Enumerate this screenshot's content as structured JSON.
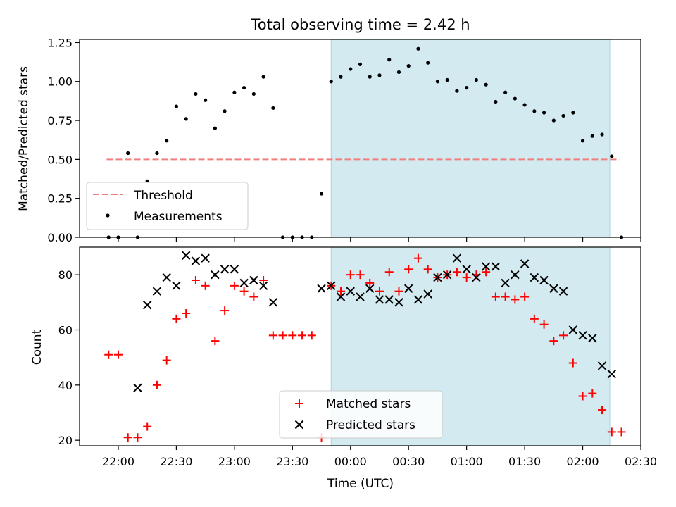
{
  "chart_data": [
    {
      "type": "scatter",
      "title": "Total observing time = 2.42 h",
      "ylabel": "Matched/Predicted stars",
      "ylim": [
        0,
        1.27
      ],
      "yticks": [
        "0.00",
        "0.25",
        "0.50",
        "0.75",
        "1.00",
        "1.25"
      ],
      "ytick_values": [
        0,
        0.25,
        0.5,
        0.75,
        1.0,
        1.25
      ],
      "xlim": [
        "21:40",
        "02:30"
      ],
      "shaded_region": [
        "23:50",
        "02:14"
      ],
      "shade_color": "#d3eaf1",
      "legend_position": "lower-left",
      "threshold": {
        "name": "Threshold",
        "value": 0.5,
        "x_range": [
          "21:54",
          "02:19"
        ],
        "color": "#f08080"
      },
      "series": [
        {
          "name": "Measurements",
          "color": "#000000",
          "points": [
            [
              "21:55",
              0.0
            ],
            [
              "22:00",
              0.0
            ],
            [
              "22:05",
              0.54
            ],
            [
              "22:10",
              0.0
            ],
            [
              "22:15",
              0.36
            ],
            [
              "22:20",
              0.54
            ],
            [
              "22:25",
              0.62
            ],
            [
              "22:30",
              0.84
            ],
            [
              "22:35",
              0.76
            ],
            [
              "22:40",
              0.92
            ],
            [
              "22:45",
              0.88
            ],
            [
              "22:50",
              0.7
            ],
            [
              "22:55",
              0.81
            ],
            [
              "23:00",
              0.93
            ],
            [
              "23:05",
              0.96
            ],
            [
              "23:10",
              0.92
            ],
            [
              "23:15",
              1.03
            ],
            [
              "23:20",
              0.83
            ],
            [
              "23:25",
              0.0
            ],
            [
              "23:30",
              0.0
            ],
            [
              "23:35",
              0.0
            ],
            [
              "23:40",
              0.0
            ],
            [
              "23:45",
              0.28
            ],
            [
              "23:50",
              1.0
            ],
            [
              "23:55",
              1.03
            ],
            [
              "00:00",
              1.08
            ],
            [
              "00:05",
              1.11
            ],
            [
              "00:10",
              1.03
            ],
            [
              "00:15",
              1.04
            ],
            [
              "00:20",
              1.14
            ],
            [
              "00:25",
              1.06
            ],
            [
              "00:30",
              1.1
            ],
            [
              "00:35",
              1.21
            ],
            [
              "00:40",
              1.12
            ],
            [
              "00:45",
              1.0
            ],
            [
              "00:50",
              1.01
            ],
            [
              "00:55",
              0.94
            ],
            [
              "01:00",
              0.96
            ],
            [
              "01:05",
              1.01
            ],
            [
              "01:10",
              0.98
            ],
            [
              "01:15",
              0.87
            ],
            [
              "01:20",
              0.93
            ],
            [
              "01:25",
              0.89
            ],
            [
              "01:30",
              0.85
            ],
            [
              "01:35",
              0.81
            ],
            [
              "01:40",
              0.8
            ],
            [
              "01:45",
              0.75
            ],
            [
              "01:50",
              0.78
            ],
            [
              "01:55",
              0.8
            ],
            [
              "02:00",
              0.62
            ],
            [
              "02:05",
              0.65
            ],
            [
              "02:10",
              0.66
            ],
            [
              "02:15",
              0.52
            ],
            [
              "02:20",
              0.0
            ]
          ]
        }
      ]
    },
    {
      "type": "scatter",
      "xlabel": "Time (UTC)",
      "ylabel": "Count",
      "ylim": [
        18,
        90
      ],
      "yticks": [
        "20",
        "40",
        "60",
        "80"
      ],
      "ytick_values": [
        20,
        40,
        60,
        80
      ],
      "xlim": [
        "21:40",
        "02:30"
      ],
      "xticks": [
        "22:00",
        "22:30",
        "23:00",
        "23:30",
        "00:00",
        "00:30",
        "01:00",
        "01:30",
        "02:00",
        "02:30"
      ],
      "shaded_region": [
        "23:50",
        "02:14"
      ],
      "shade_color": "#d3eaf1",
      "legend_position": "lower-center",
      "series": [
        {
          "name": "Matched stars",
          "color": "#ff0000",
          "marker": "plus",
          "points": [
            [
              "21:55",
              51
            ],
            [
              "22:00",
              51
            ],
            [
              "22:05",
              21
            ],
            [
              "22:10",
              21
            ],
            [
              "22:15",
              25
            ],
            [
              "22:20",
              40
            ],
            [
              "22:25",
              49
            ],
            [
              "22:30",
              64
            ],
            [
              "22:35",
              66
            ],
            [
              "22:40",
              78
            ],
            [
              "22:45",
              76
            ],
            [
              "22:50",
              56
            ],
            [
              "22:55",
              67
            ],
            [
              "23:00",
              76
            ],
            [
              "23:05",
              74
            ],
            [
              "23:10",
              72
            ],
            [
              "23:15",
              78
            ],
            [
              "23:20",
              58
            ],
            [
              "23:25",
              58
            ],
            [
              "23:30",
              58
            ],
            [
              "23:35",
              58
            ],
            [
              "23:40",
              58
            ],
            [
              "23:45",
              21
            ],
            [
              "23:50",
              76
            ],
            [
              "23:55",
              74
            ],
            [
              "00:00",
              80
            ],
            [
              "00:05",
              80
            ],
            [
              "00:10",
              77
            ],
            [
              "00:15",
              74
            ],
            [
              "00:20",
              81
            ],
            [
              "00:25",
              74
            ],
            [
              "00:30",
              82
            ],
            [
              "00:35",
              86
            ],
            [
              "00:40",
              82
            ],
            [
              "00:45",
              79
            ],
            [
              "00:50",
              80
            ],
            [
              "00:55",
              81
            ],
            [
              "01:00",
              79
            ],
            [
              "01:05",
              80
            ],
            [
              "01:10",
              81
            ],
            [
              "01:15",
              72
            ],
            [
              "01:20",
              72
            ],
            [
              "01:25",
              71
            ],
            [
              "01:30",
              72
            ],
            [
              "01:35",
              64
            ],
            [
              "01:40",
              62
            ],
            [
              "01:45",
              56
            ],
            [
              "01:50",
              58
            ],
            [
              "01:55",
              48
            ],
            [
              "02:00",
              36
            ],
            [
              "02:05",
              37
            ],
            [
              "02:10",
              31
            ],
            [
              "02:15",
              23
            ],
            [
              "02:20",
              23
            ]
          ]
        },
        {
          "name": "Predicted stars",
          "color": "#000000",
          "marker": "x",
          "points": [
            [
              "22:10",
              39
            ],
            [
              "22:15",
              69
            ],
            [
              "22:20",
              74
            ],
            [
              "22:25",
              79
            ],
            [
              "22:30",
              76
            ],
            [
              "22:35",
              87
            ],
            [
              "22:40",
              85
            ],
            [
              "22:45",
              86
            ],
            [
              "22:50",
              80
            ],
            [
              "22:55",
              82
            ],
            [
              "23:00",
              82
            ],
            [
              "23:05",
              77
            ],
            [
              "23:10",
              78
            ],
            [
              "23:15",
              76
            ],
            [
              "23:20",
              70
            ],
            [
              "23:45",
              75
            ],
            [
              "23:50",
              76
            ],
            [
              "23:55",
              72
            ],
            [
              "00:00",
              74
            ],
            [
              "00:05",
              72
            ],
            [
              "00:10",
              75
            ],
            [
              "00:15",
              71
            ],
            [
              "00:20",
              71
            ],
            [
              "00:25",
              70
            ],
            [
              "00:30",
              75
            ],
            [
              "00:35",
              71
            ],
            [
              "00:40",
              73
            ],
            [
              "00:45",
              79
            ],
            [
              "00:50",
              80
            ],
            [
              "00:55",
              86
            ],
            [
              "01:00",
              82
            ],
            [
              "01:05",
              79
            ],
            [
              "01:10",
              83
            ],
            [
              "01:15",
              83
            ],
            [
              "01:20",
              77
            ],
            [
              "01:25",
              80
            ],
            [
              "01:30",
              84
            ],
            [
              "01:35",
              79
            ],
            [
              "01:40",
              78
            ],
            [
              "01:45",
              75
            ],
            [
              "01:50",
              74
            ],
            [
              "01:55",
              60
            ],
            [
              "02:00",
              58
            ],
            [
              "02:05",
              57
            ],
            [
              "02:10",
              47
            ],
            [
              "02:15",
              44
            ]
          ]
        }
      ]
    }
  ]
}
